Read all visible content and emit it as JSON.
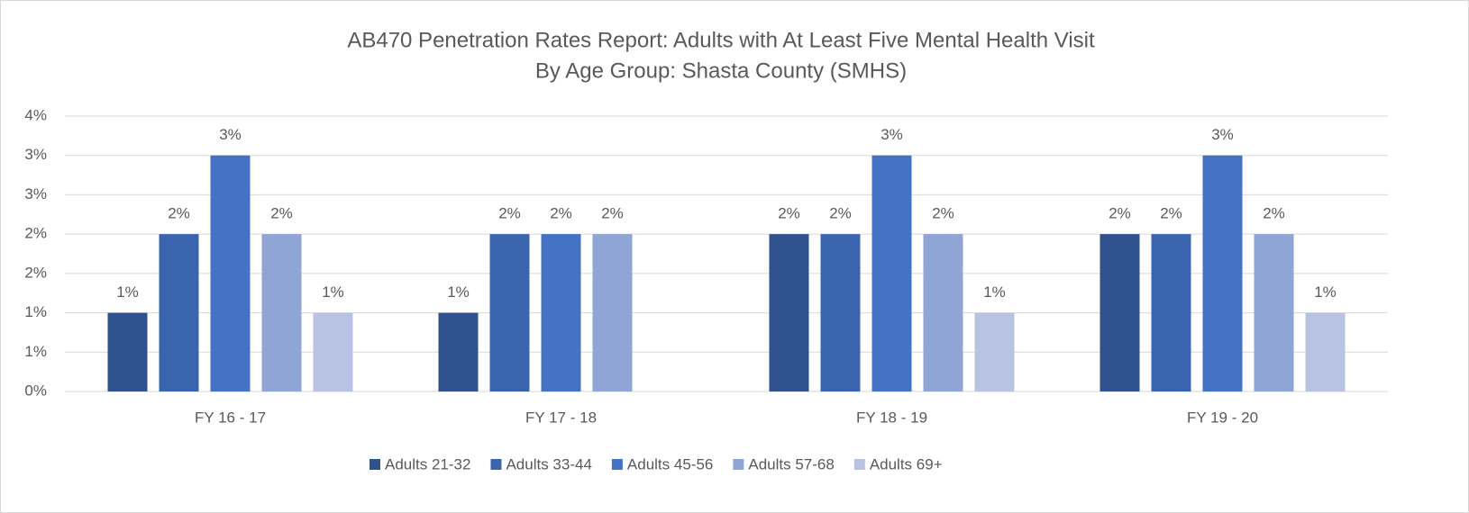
{
  "chart_data": {
    "type": "bar",
    "title": "AB470 Penetration Rates Report: Adults with At Least Five Mental Health Visit",
    "subtitle": "By Age Group: Shasta County (SMHS)",
    "categories": [
      "FY 16 - 17",
      "FY 17 - 18",
      "FY 18 - 19",
      "FY 19 - 20"
    ],
    "series": [
      {
        "name": "Adults 21-32",
        "color": "#2f528f",
        "values": [
          1,
          1,
          2,
          2
        ],
        "value_labels": [
          "1%",
          "1%",
          "2%",
          "2%"
        ]
      },
      {
        "name": "Adults 33-44",
        "color": "#3a64ad",
        "values": [
          2,
          2,
          2,
          2
        ],
        "value_labels": [
          "2%",
          "2%",
          "2%",
          "2%"
        ]
      },
      {
        "name": "Adults 45-56",
        "color": "#4472c4",
        "values": [
          3,
          2,
          3,
          3
        ],
        "value_labels": [
          "3%",
          "2%",
          "3%",
          "3%"
        ]
      },
      {
        "name": "Adults 57-68",
        "color": "#8fa5d6",
        "values": [
          2,
          2,
          2,
          2
        ],
        "value_labels": [
          "2%",
          "2%",
          "2%",
          "2%"
        ]
      },
      {
        "name": "Adults 69+",
        "color": "#b8c3e3",
        "values": [
          1,
          null,
          1,
          1
        ],
        "value_labels": [
          "1%",
          null,
          "1%",
          "1%"
        ]
      }
    ],
    "ylim": [
      0,
      3.5
    ],
    "yticks": [
      {
        "value": 0,
        "label": "0%"
      },
      {
        "value": 0.5,
        "label": "1%"
      },
      {
        "value": 1,
        "label": "1%"
      },
      {
        "value": 1.5,
        "label": "2%"
      },
      {
        "value": 2,
        "label": "2%"
      },
      {
        "value": 2.5,
        "label": "3%"
      },
      {
        "value": 3,
        "label": "3%"
      },
      {
        "value": 3.5,
        "label": "4%"
      }
    ],
    "grid": true,
    "legend": "bottom"
  }
}
